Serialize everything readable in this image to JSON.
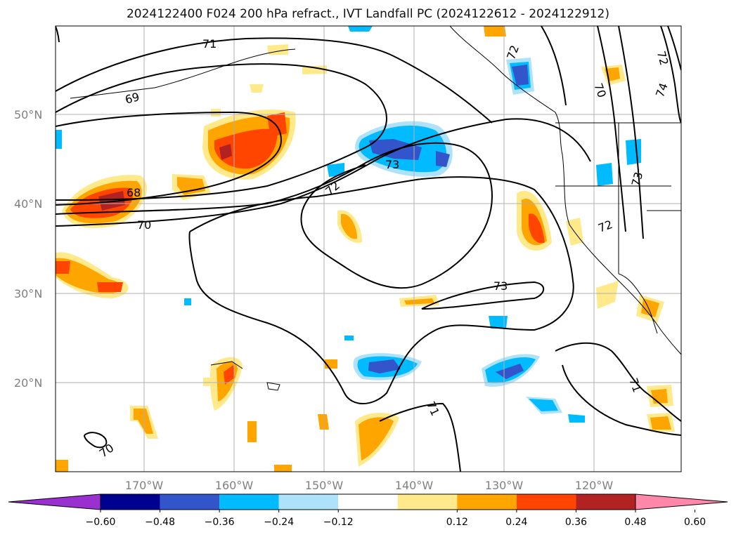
{
  "title": "2024122400 F024 200 hPa refract., IVT Landfall PC (2024122612 - 2024122912)",
  "lat_labels": [
    "50°N",
    "40°N",
    "30°N",
    "20°N"
  ],
  "lon_labels": [
    "170°W",
    "160°W",
    "150°W",
    "140°W",
    "130°W",
    "120°W"
  ],
  "contour_labels": [
    "71",
    "72",
    "69",
    "68",
    "70",
    "73",
    "73",
    "72",
    "70",
    "71",
    "71",
    "70",
    "72",
    "73",
    "74",
    "72"
  ],
  "colorbar": {
    "ticks": [
      "−0.60",
      "−0.48",
      "−0.36",
      "−0.24",
      "−0.12",
      "0.12",
      "0.24",
      "0.36",
      "0.48",
      "0.60"
    ],
    "colors": [
      "#9b30d0",
      "#000090",
      "#3355cc",
      "#00bbff",
      "#aee2fa",
      "#ffffff",
      "#ffe98a",
      "#ffa500",
      "#ff4500",
      "#b22222",
      "#ff88aa"
    ]
  }
}
